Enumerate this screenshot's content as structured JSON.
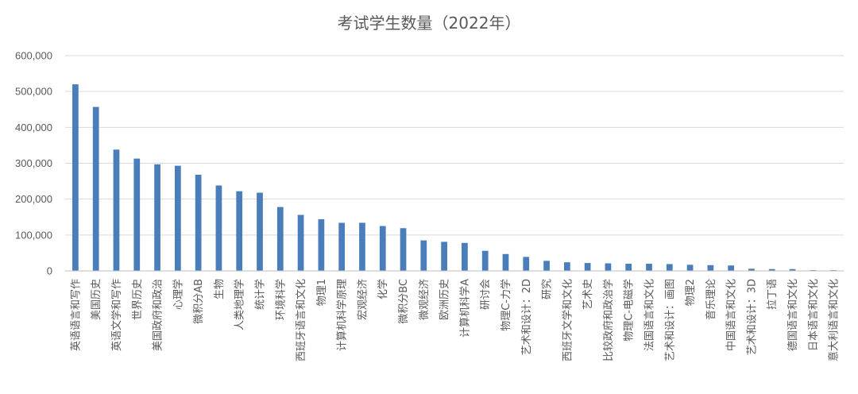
{
  "chart_data": {
    "type": "bar",
    "title": "考试学生数量（2022年）",
    "xlabel": "",
    "ylabel": "",
    "ylim": [
      0,
      600000
    ],
    "yticks": [
      0,
      100000,
      200000,
      300000,
      400000,
      500000,
      600000
    ],
    "ytick_labels": [
      "0",
      "100,000",
      "200,000",
      "300,000",
      "400,000",
      "500,000",
      "600,000"
    ],
    "grid": true,
    "bar_color": "#4a7ebb",
    "categories": [
      "英语语言和写作",
      "美国历史",
      "英语文学和写作",
      "世界历史",
      "美国政府和政治",
      "心理学",
      "微积分AB",
      "生物",
      "人类地理学",
      "统计学",
      "环境科学",
      "西班牙语言和文化",
      "物理1",
      "计算机科学原理",
      "宏观经济",
      "化学",
      "微积分BC",
      "微观经济",
      "欧洲历史",
      "计算机科学A",
      "研讨会",
      "物理C-力学",
      "艺术和设计：2D",
      "研究",
      "西班牙文学和文化",
      "艺术史",
      "比较政府和政治学",
      "物理C-电磁学",
      "法国语言和文化",
      "艺术和设计：画图",
      "物理2",
      "音乐理论",
      "中国语言和文化",
      "艺术和设计：3D",
      "拉丁语",
      "德国语言和文化",
      "日本语言和文化",
      "意大利语言和文化"
    ],
    "values": [
      520000,
      457000,
      338000,
      313000,
      297000,
      293000,
      268000,
      238000,
      222000,
      218000,
      178000,
      156000,
      144000,
      134000,
      134000,
      125000,
      119000,
      85000,
      81000,
      78000,
      56000,
      47000,
      39000,
      28000,
      24000,
      22000,
      21000,
      20000,
      20000,
      19000,
      17000,
      16000,
      15000,
      6000,
      5000,
      5000,
      2000,
      2000
    ]
  }
}
